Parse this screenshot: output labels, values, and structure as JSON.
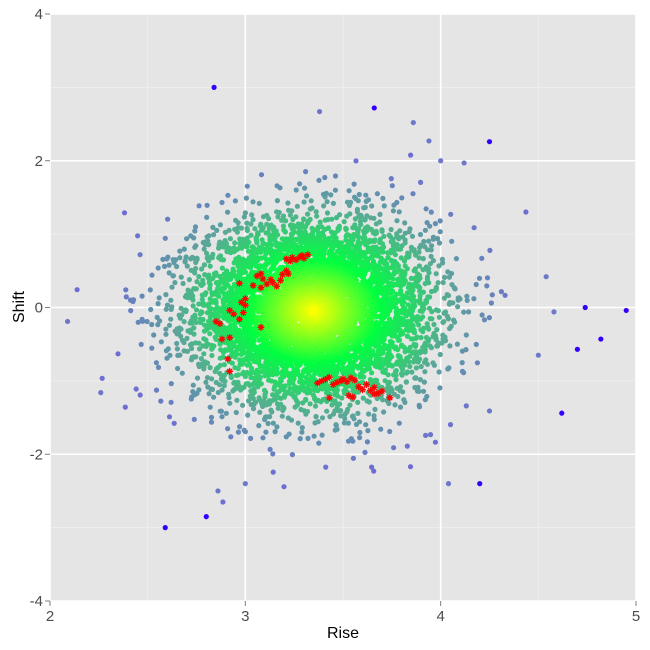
{
  "chart_data": {
    "type": "scatter",
    "title": "",
    "xlabel": "Rise",
    "ylabel": "Shift",
    "xlim": [
      2,
      5
    ],
    "ylim": [
      -4,
      4
    ],
    "x_ticks": [
      "2",
      "3",
      "4",
      "5"
    ],
    "y_ticks": [
      "-4",
      "-2",
      "0",
      "2",
      "4"
    ],
    "grid": true,
    "legend": "none",
    "colors": {
      "panel": "#e5e5e5",
      "grid_major": "#ffffff",
      "grid_minor": "#f0f0f0",
      "density_high": "#ffff00",
      "density_mid": "#00ff40",
      "density_low": "#5aa896",
      "outlier": "#3300ff",
      "highlight": "#ff0000"
    },
    "cloud": {
      "center": [
        3.35,
        -0.05
      ],
      "sd": [
        0.3,
        0.62
      ],
      "count": 6000
    },
    "outliers": [
      [
        2.09,
        -0.19
      ],
      [
        2.26,
        -1.16
      ],
      [
        2.59,
        -3.0
      ],
      [
        2.8,
        -2.85
      ],
      [
        2.84,
        3.0
      ],
      [
        2.86,
        -2.5
      ],
      [
        3.0,
        -2.4
      ],
      [
        3.38,
        2.67
      ],
      [
        3.66,
        2.72
      ],
      [
        3.86,
        2.52
      ],
      [
        3.94,
        2.27
      ],
      [
        4.25,
        2.26
      ],
      [
        4.2,
        -2.4
      ],
      [
        4.04,
        -2.4
      ],
      [
        4.54,
        0.42
      ],
      [
        4.62,
        -1.44
      ],
      [
        4.7,
        -0.57
      ],
      [
        4.74,
        0.0
      ],
      [
        4.82,
        -0.43
      ],
      [
        4.95,
        -0.04
      ],
      [
        4.58,
        -0.06
      ],
      [
        4.25,
        -1.41
      ],
      [
        4.5,
        -0.65
      ],
      [
        4.0,
        2.0
      ],
      [
        4.12,
        1.97
      ]
    ],
    "highlight_points": [
      [
        2.85,
        -0.19
      ],
      [
        2.87,
        -0.22
      ],
      [
        2.88,
        -0.43
      ],
      [
        2.92,
        -0.41
      ],
      [
        2.91,
        -0.7
      ],
      [
        2.92,
        -0.87
      ],
      [
        2.92,
        -0.04
      ],
      [
        2.94,
        -0.09
      ],
      [
        2.97,
        -0.16
      ],
      [
        2.99,
        -0.07
      ],
      [
        2.98,
        0.07
      ],
      [
        3.0,
        0.12
      ],
      [
        3.0,
        0.03
      ],
      [
        2.97,
        0.33
      ],
      [
        3.04,
        0.3
      ],
      [
        3.06,
        0.43
      ],
      [
        3.08,
        0.46
      ],
      [
        3.09,
        0.39
      ],
      [
        3.08,
        0.27
      ],
      [
        3.11,
        0.32
      ],
      [
        3.13,
        0.38
      ],
      [
        3.14,
        0.34
      ],
      [
        3.16,
        0.29
      ],
      [
        3.18,
        0.37
      ],
      [
        3.19,
        0.45
      ],
      [
        3.21,
        0.5
      ],
      [
        3.22,
        0.46
      ],
      [
        3.21,
        0.66
      ],
      [
        3.23,
        0.63
      ],
      [
        3.24,
        0.68
      ],
      [
        3.26,
        0.65
      ],
      [
        3.28,
        0.69
      ],
      [
        3.29,
        0.71
      ],
      [
        3.3,
        0.67
      ],
      [
        3.32,
        0.72
      ],
      [
        3.08,
        -0.27
      ],
      [
        3.37,
        -1.03
      ],
      [
        3.39,
        -1.0
      ],
      [
        3.41,
        -0.98
      ],
      [
        3.43,
        -0.95
      ],
      [
        3.45,
        -1.05
      ],
      [
        3.47,
        -1.02
      ],
      [
        3.49,
        -1.0
      ],
      [
        3.5,
        -0.97
      ],
      [
        3.52,
        -1.01
      ],
      [
        3.54,
        -0.96
      ],
      [
        3.56,
        -0.99
      ],
      [
        3.58,
        -1.08
      ],
      [
        3.6,
        -1.12
      ],
      [
        3.62,
        -1.05
      ],
      [
        3.64,
        -1.13
      ],
      [
        3.66,
        -1.09
      ],
      [
        3.68,
        -1.17
      ],
      [
        3.7,
        -1.14
      ],
      [
        3.74,
        -1.23
      ],
      [
        3.43,
        -1.23
      ],
      [
        3.53,
        -1.2
      ],
      [
        3.55,
        -1.22
      ],
      [
        3.66,
        -1.18
      ]
    ]
  }
}
